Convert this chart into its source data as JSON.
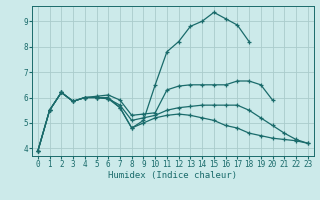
{
  "xlabel": "Humidex (Indice chaleur)",
  "background_color": "#cceaea",
  "grid_color": "#aacccc",
  "line_color": "#1a6b6b",
  "xlim": [
    -0.5,
    23.5
  ],
  "ylim": [
    3.7,
    9.6
  ],
  "xticks": [
    0,
    1,
    2,
    3,
    4,
    5,
    6,
    7,
    8,
    9,
    10,
    11,
    12,
    13,
    14,
    15,
    16,
    17,
    18,
    19,
    20,
    21,
    22,
    23
  ],
  "yticks": [
    4,
    5,
    6,
    7,
    8,
    9
  ],
  "series": [
    {
      "x": [
        0,
        1,
        2,
        3,
        4,
        5,
        6,
        7,
        8,
        9,
        10,
        11,
        12,
        13,
        14,
        15,
        16,
        17,
        18
      ],
      "y": [
        3.9,
        5.5,
        6.2,
        5.85,
        6.0,
        6.0,
        6.0,
        5.6,
        4.8,
        5.1,
        6.5,
        7.8,
        8.2,
        8.8,
        9.0,
        9.35,
        9.1,
        8.85,
        8.2
      ]
    },
    {
      "x": [
        0,
        1,
        2,
        3,
        4,
        5,
        6,
        7,
        8,
        9,
        10,
        11,
        12,
        13,
        14,
        15,
        16,
        17,
        18,
        19,
        20,
        21,
        22,
        23
      ],
      "y": [
        3.9,
        5.5,
        6.2,
        5.85,
        6.0,
        6.05,
        6.1,
        5.9,
        5.3,
        5.35,
        5.4,
        6.3,
        6.45,
        6.5,
        6.5,
        6.5,
        6.5,
        6.65,
        6.65,
        6.5,
        5.9,
        null,
        null,
        null
      ]
    },
    {
      "x": [
        0,
        1,
        2,
        3,
        4,
        5,
        6,
        7,
        8,
        9,
        10,
        11,
        12,
        13,
        14,
        15,
        16,
        17,
        18,
        19,
        20,
        21,
        22,
        23
      ],
      "y": [
        3.9,
        5.5,
        6.2,
        5.85,
        6.0,
        6.0,
        5.95,
        5.7,
        5.1,
        5.2,
        5.3,
        5.5,
        5.6,
        5.65,
        5.7,
        5.7,
        5.7,
        5.7,
        5.5,
        5.2,
        4.9,
        4.6,
        4.35,
        4.2
      ]
    },
    {
      "x": [
        0,
        1,
        2,
        3,
        4,
        5,
        6,
        7,
        8,
        9,
        10,
        11,
        12,
        13,
        14,
        15,
        16,
        17,
        18,
        19,
        20,
        21,
        22,
        23
      ],
      "y": [
        3.9,
        5.5,
        6.2,
        5.85,
        6.0,
        6.0,
        5.95,
        5.6,
        4.8,
        5.0,
        5.2,
        5.3,
        5.35,
        5.3,
        5.2,
        5.1,
        4.9,
        4.8,
        4.6,
        4.5,
        4.4,
        4.35,
        4.3,
        4.2
      ]
    }
  ]
}
